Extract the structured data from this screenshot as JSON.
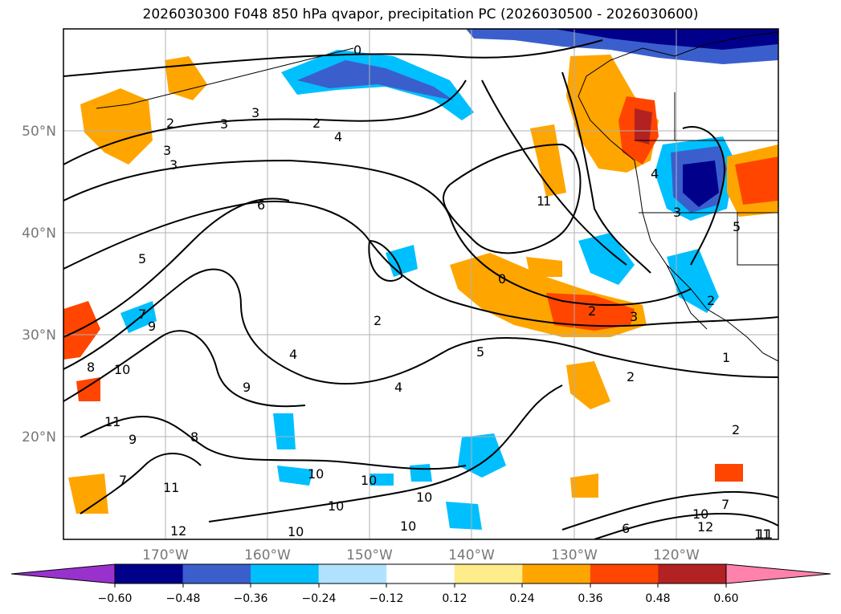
{
  "title": "2026030300 F048 850 hPa qvapor, precipitation PC (2026030500 - 2026030600)",
  "latitude_labels": [
    "50°N",
    "40°N",
    "30°N",
    "20°N"
  ],
  "longitude_labels": [
    "170°W",
    "160°W",
    "150°W",
    "140°W",
    "130°W",
    "120°W"
  ],
  "colorbar": {
    "tick_labels": [
      "−0.60",
      "−0.48",
      "−0.36",
      "−0.24",
      "−0.12",
      "0.12",
      "0.24",
      "0.36",
      "0.48",
      "0.60"
    ],
    "colors": [
      "#9932cc",
      "#00008b",
      "#3a5fcd",
      "#00bfff",
      "#b0e2ff",
      "#ffffff",
      "#ffec8b",
      "#ffa500",
      "#ff4500",
      "#b22222",
      "#ff82ab"
    ]
  },
  "contour_labels": [
    "0",
    "2",
    "3",
    "3",
    "2",
    "4",
    "3",
    "3",
    "6",
    "5",
    "7",
    "9",
    "8",
    "10",
    "11",
    "9",
    "8",
    "9",
    "7",
    "11",
    "12",
    "10",
    "10",
    "10",
    "10",
    "10",
    "10",
    "4",
    "5",
    "4",
    "2",
    "0",
    "2",
    "3",
    "1",
    "2",
    "2",
    "1",
    "5",
    "4",
    "2",
    "11",
    "12",
    "10",
    "6",
    "7",
    "11",
    "3",
    "1"
  ]
}
